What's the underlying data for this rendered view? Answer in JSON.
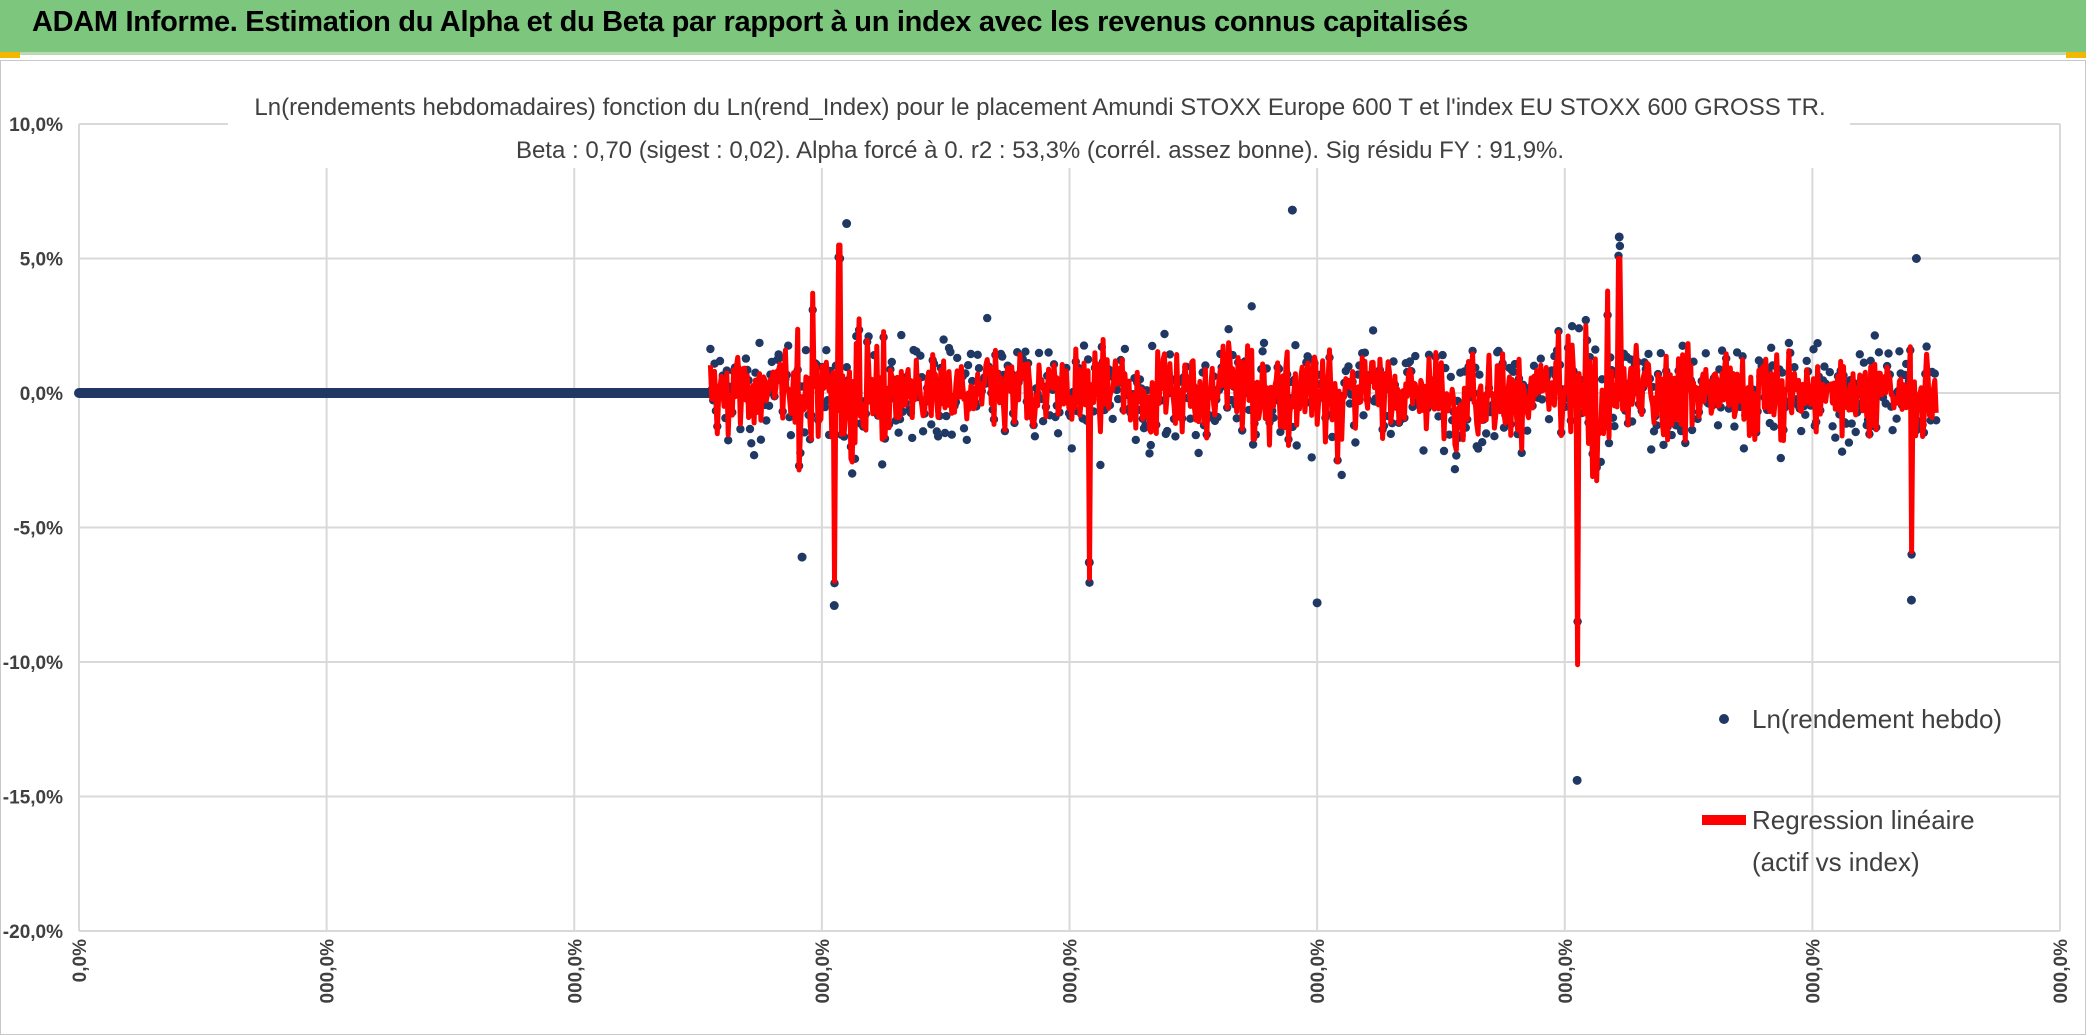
{
  "header": {
    "title": "ADAM Informe. Estimation du Alpha et du Beta par rapport à un index avec les revenus connus capitalisés",
    "background_color": "#7dc67d"
  },
  "chart_data": {
    "type": "scatter",
    "title": "Ln(rendements hebdomadaires) fonction du Ln(rend_Index) pour le placement Amundi STOXX Europe 600 T et l'index EU STOXX 600 GROSS TR.",
    "subtitle": "Beta : 0,70 (sigest : 0,02). Alpha forcé à 0. r2 : 53,3% (corrél. assez bonne). Sig résidu FY : 91,9%.",
    "xlabel": "",
    "ylabel": "",
    "y_tick_labels": [
      "10,0%",
      "5,0%",
      "0,0%",
      "-5,0%",
      "-10,0%",
      "-15,0%",
      "-20,0%"
    ],
    "y_ticks": [
      10,
      5,
      0,
      -5,
      -10,
      -15,
      -20
    ],
    "ylim": [
      -20,
      10
    ],
    "x_tick_labels": [
      "0,0%",
      "000,0%",
      "000,0%",
      "000,0%",
      "000,0%",
      "000,0%",
      "000,0%",
      "000,0%",
      "000,0%"
    ],
    "xlim": [
      0,
      8
    ],
    "grid": true,
    "legend_position": "right",
    "series": [
      {
        "name": "Ln(rendement hebdo)",
        "kind": "points",
        "color": "#203864",
        "flat_segment": {
          "x_from": 0,
          "x_to": 2.55,
          "y": 0
        },
        "x_range": [
          2.55,
          7.5
        ],
        "notable_points": [
          {
            "x": 2.92,
            "y": -6.1
          },
          {
            "x": 3.05,
            "y": -7.9
          },
          {
            "x": 3.1,
            "y": 6.3
          },
          {
            "x": 4.08,
            "y": -6.3
          },
          {
            "x": 4.9,
            "y": 6.8
          },
          {
            "x": 5.0,
            "y": -7.8
          },
          {
            "x": 6.05,
            "y": -14.4
          },
          {
            "x": 6.22,
            "y": 5.8
          },
          {
            "x": 7.4,
            "y": -7.7
          },
          {
            "x": 7.42,
            "y": 5.0
          }
        ]
      },
      {
        "name": "Regression linéaire (actif vs index)",
        "legend_lines": [
          "Regression linéaire",
          "(actif vs index)"
        ],
        "kind": "line",
        "color": "#ff0000",
        "beta": 0.7,
        "notable_values": [
          {
            "x": 3.07,
            "y": 5.5
          },
          {
            "x": 3.05,
            "y": -7.0
          },
          {
            "x": 4.08,
            "y": -6.9
          },
          {
            "x": 6.05,
            "y": -10.1
          },
          {
            "x": 6.22,
            "y": 5.0
          },
          {
            "x": 7.4,
            "y": -5.9
          }
        ]
      }
    ]
  }
}
